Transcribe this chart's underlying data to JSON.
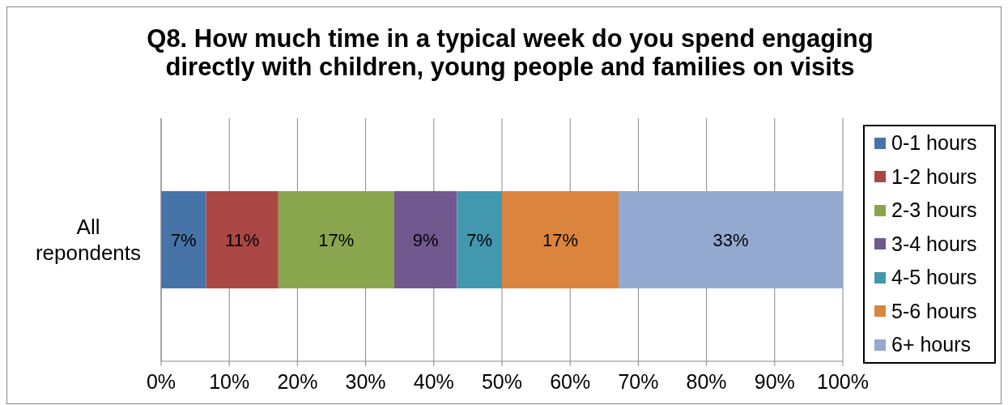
{
  "chart_data": {
    "type": "bar",
    "orientation": "horizontal",
    "stacked": true,
    "title": "Q8. How much time in a typical week do you spend engaging directly with children, young people and families on visits",
    "categories": [
      "All repondents"
    ],
    "series": [
      {
        "name": "0-1 hours",
        "color": "#4674a8",
        "values": [
          6.6
        ],
        "value_labels": [
          "7%"
        ]
      },
      {
        "name": "1-2 hours",
        "color": "#aa4744",
        "values": [
          10.6
        ],
        "value_labels": [
          "11%"
        ]
      },
      {
        "name": "2-3 hours",
        "color": "#89a54e",
        "values": [
          17.0
        ],
        "value_labels": [
          "17%"
        ]
      },
      {
        "name": "3-4 hours",
        "color": "#71588f",
        "values": [
          9.2
        ],
        "value_labels": [
          "9%"
        ]
      },
      {
        "name": "4-5 hours",
        "color": "#4198af",
        "values": [
          6.6
        ],
        "value_labels": [
          "7%"
        ]
      },
      {
        "name": "5-6 hours",
        "color": "#db843d",
        "values": [
          17.1
        ],
        "value_labels": [
          "17%"
        ]
      },
      {
        "name": "6+ hours",
        "color": "#93a9cf",
        "values": [
          32.9
        ],
        "value_labels": [
          "33%"
        ]
      }
    ],
    "xlim": [
      0,
      100
    ],
    "xticks": [
      {
        "value": 0,
        "label": "0%"
      },
      {
        "value": 10,
        "label": "10%"
      },
      {
        "value": 20,
        "label": "20%"
      },
      {
        "value": 30,
        "label": "30%"
      },
      {
        "value": 40,
        "label": "40%"
      },
      {
        "value": 50,
        "label": "50%"
      },
      {
        "value": 60,
        "label": "60%"
      },
      {
        "value": 70,
        "label": "70%"
      },
      {
        "value": 80,
        "label": "80%"
      },
      {
        "value": 90,
        "label": "90%"
      },
      {
        "value": 100,
        "label": "100%"
      }
    ],
    "grid": "x",
    "legend": "right"
  }
}
